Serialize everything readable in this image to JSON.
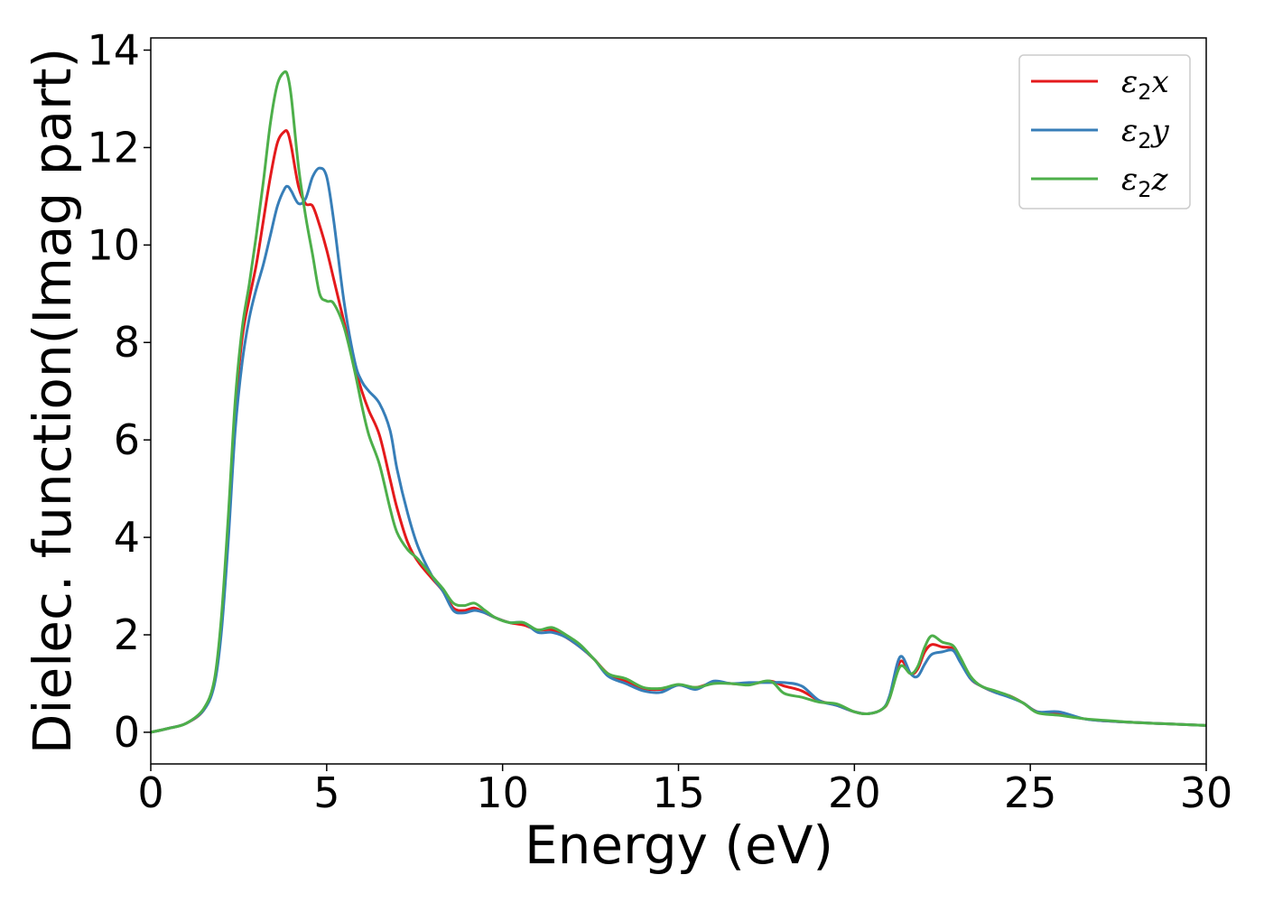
{
  "chart_data": {
    "type": "line",
    "title": "",
    "xlabel": "Energy (eV)",
    "ylabel": "Dielec. function(Imag part)",
    "xlim": [
      0,
      30
    ],
    "ylim": [
      -0.65,
      14.25
    ],
    "xticks": [
      0,
      5,
      10,
      15,
      20,
      25,
      30
    ],
    "yticks": [
      0,
      2,
      4,
      6,
      8,
      10,
      12,
      14
    ],
    "grid": false,
    "legend_position": "upper-right",
    "series": [
      {
        "name": "ε2x",
        "legend": {
          "base": "ε",
          "sub": "2",
          "suffix": "x"
        },
        "color": "#e41a1c",
        "x": [
          0,
          0.5,
          1.0,
          1.5,
          1.8,
          2.0,
          2.2,
          2.4,
          2.6,
          2.8,
          3.0,
          3.2,
          3.4,
          3.6,
          3.8,
          3.9,
          4.0,
          4.2,
          4.4,
          4.6,
          4.8,
          5.0,
          5.2,
          5.5,
          5.8,
          6.0,
          6.2,
          6.5,
          6.8,
          7.0,
          7.3,
          7.6,
          8.0,
          8.3,
          8.6,
          8.9,
          9.2,
          9.5,
          9.8,
          10.2,
          10.6,
          11.0,
          11.4,
          11.8,
          12.2,
          12.6,
          13.0,
          13.5,
          14.0,
          14.5,
          15.0,
          15.5,
          16.0,
          16.5,
          17.0,
          17.6,
          18.0,
          18.5,
          19.0,
          19.5,
          20.0,
          20.4,
          20.8,
          21.0,
          21.3,
          21.6,
          21.8,
          22.0,
          22.2,
          22.5,
          22.8,
          23.0,
          23.3,
          23.6,
          24.0,
          24.4,
          24.8,
          25.2,
          25.8,
          26.5,
          27.0,
          28.0,
          29.0,
          30.0
        ],
        "y": [
          0.0,
          0.08,
          0.18,
          0.45,
          1.0,
          2.2,
          4.2,
          6.6,
          8.1,
          8.9,
          9.6,
          10.5,
          11.4,
          12.1,
          12.33,
          12.3,
          12.0,
          11.2,
          10.85,
          10.8,
          10.4,
          9.9,
          9.3,
          8.4,
          7.5,
          7.0,
          6.6,
          6.1,
          5.2,
          4.6,
          3.9,
          3.5,
          3.15,
          2.9,
          2.55,
          2.5,
          2.55,
          2.45,
          2.35,
          2.25,
          2.2,
          2.1,
          2.1,
          1.95,
          1.75,
          1.5,
          1.2,
          1.05,
          0.9,
          0.88,
          0.97,
          0.92,
          1.02,
          1.0,
          0.98,
          1.05,
          0.95,
          0.85,
          0.65,
          0.55,
          0.42,
          0.38,
          0.48,
          0.7,
          1.45,
          1.2,
          1.3,
          1.65,
          1.8,
          1.75,
          1.72,
          1.5,
          1.1,
          0.95,
          0.82,
          0.75,
          0.6,
          0.42,
          0.38,
          0.28,
          0.24,
          0.2,
          0.17,
          0.14
        ]
      },
      {
        "name": "ε2y",
        "legend": {
          "base": "ε",
          "sub": "2",
          "suffix": "y"
        },
        "color": "#377eb8",
        "x": [
          0,
          0.5,
          1.0,
          1.5,
          1.8,
          2.0,
          2.2,
          2.4,
          2.6,
          2.8,
          3.0,
          3.2,
          3.4,
          3.6,
          3.8,
          3.9,
          4.0,
          4.2,
          4.4,
          4.6,
          4.8,
          5.0,
          5.2,
          5.5,
          5.8,
          6.0,
          6.2,
          6.5,
          6.8,
          7.0,
          7.3,
          7.6,
          8.0,
          8.3,
          8.6,
          8.9,
          9.2,
          9.5,
          9.8,
          10.2,
          10.6,
          11.0,
          11.4,
          11.8,
          12.2,
          12.6,
          13.0,
          13.5,
          14.0,
          14.5,
          15.0,
          15.5,
          16.0,
          16.5,
          17.0,
          17.6,
          18.0,
          18.5,
          19.0,
          19.5,
          20.0,
          20.4,
          20.8,
          21.0,
          21.3,
          21.6,
          21.8,
          22.0,
          22.2,
          22.5,
          22.8,
          23.0,
          23.3,
          23.6,
          24.0,
          24.4,
          24.8,
          25.2,
          25.8,
          26.5,
          27.0,
          28.0,
          29.0,
          30.0
        ],
        "y": [
          0.0,
          0.08,
          0.18,
          0.45,
          0.95,
          2.0,
          3.9,
          6.2,
          7.6,
          8.5,
          9.1,
          9.6,
          10.2,
          10.8,
          11.15,
          11.2,
          11.1,
          10.85,
          10.95,
          11.4,
          11.58,
          11.4,
          10.5,
          8.8,
          7.6,
          7.2,
          7.0,
          6.75,
          6.2,
          5.4,
          4.5,
          3.8,
          3.2,
          2.9,
          2.5,
          2.45,
          2.5,
          2.45,
          2.35,
          2.25,
          2.25,
          2.05,
          2.05,
          1.95,
          1.75,
          1.5,
          1.15,
          1.0,
          0.85,
          0.82,
          0.97,
          0.88,
          1.05,
          1.0,
          1.02,
          1.02,
          1.02,
          0.95,
          0.65,
          0.55,
          0.42,
          0.38,
          0.48,
          0.75,
          1.55,
          1.2,
          1.15,
          1.4,
          1.6,
          1.65,
          1.68,
          1.45,
          1.1,
          0.95,
          0.82,
          0.72,
          0.6,
          0.42,
          0.42,
          0.28,
          0.24,
          0.2,
          0.17,
          0.14
        ]
      },
      {
        "name": "ε2z",
        "legend": {
          "base": "ε",
          "sub": "2",
          "suffix": "z"
        },
        "color": "#4daf4a",
        "x": [
          0,
          0.5,
          1.0,
          1.5,
          1.8,
          2.0,
          2.2,
          2.4,
          2.6,
          2.8,
          3.0,
          3.2,
          3.4,
          3.6,
          3.8,
          3.9,
          4.0,
          4.2,
          4.4,
          4.6,
          4.8,
          5.0,
          5.2,
          5.5,
          5.8,
          6.0,
          6.2,
          6.5,
          6.8,
          7.0,
          7.3,
          7.6,
          8.0,
          8.3,
          8.6,
          8.9,
          9.2,
          9.5,
          9.8,
          10.2,
          10.6,
          11.0,
          11.4,
          11.8,
          12.2,
          12.6,
          13.0,
          13.5,
          14.0,
          14.5,
          15.0,
          15.5,
          16.0,
          16.5,
          17.0,
          17.6,
          18.0,
          18.5,
          19.0,
          19.5,
          20.0,
          20.4,
          20.8,
          21.0,
          21.3,
          21.6,
          21.8,
          22.0,
          22.2,
          22.5,
          22.8,
          23.0,
          23.3,
          23.6,
          24.0,
          24.4,
          24.8,
          25.2,
          25.8,
          26.5,
          27.0,
          28.0,
          29.0,
          30.0
        ],
        "y": [
          0.0,
          0.08,
          0.18,
          0.48,
          1.05,
          2.3,
          4.4,
          6.8,
          8.3,
          9.2,
          10.2,
          11.3,
          12.5,
          13.3,
          13.55,
          13.45,
          13.0,
          11.6,
          10.6,
          9.8,
          9.0,
          8.85,
          8.8,
          8.3,
          7.4,
          6.7,
          6.1,
          5.5,
          4.6,
          4.1,
          3.75,
          3.55,
          3.2,
          2.95,
          2.65,
          2.6,
          2.65,
          2.5,
          2.35,
          2.25,
          2.25,
          2.1,
          2.15,
          2.0,
          1.8,
          1.5,
          1.2,
          1.1,
          0.92,
          0.9,
          0.98,
          0.92,
          1.0,
          1.0,
          0.97,
          1.05,
          0.8,
          0.72,
          0.62,
          0.58,
          0.42,
          0.38,
          0.48,
          0.7,
          1.35,
          1.2,
          1.35,
          1.75,
          1.98,
          1.85,
          1.78,
          1.55,
          1.15,
          0.95,
          0.85,
          0.75,
          0.6,
          0.4,
          0.35,
          0.28,
          0.25,
          0.2,
          0.17,
          0.14
        ]
      }
    ]
  }
}
